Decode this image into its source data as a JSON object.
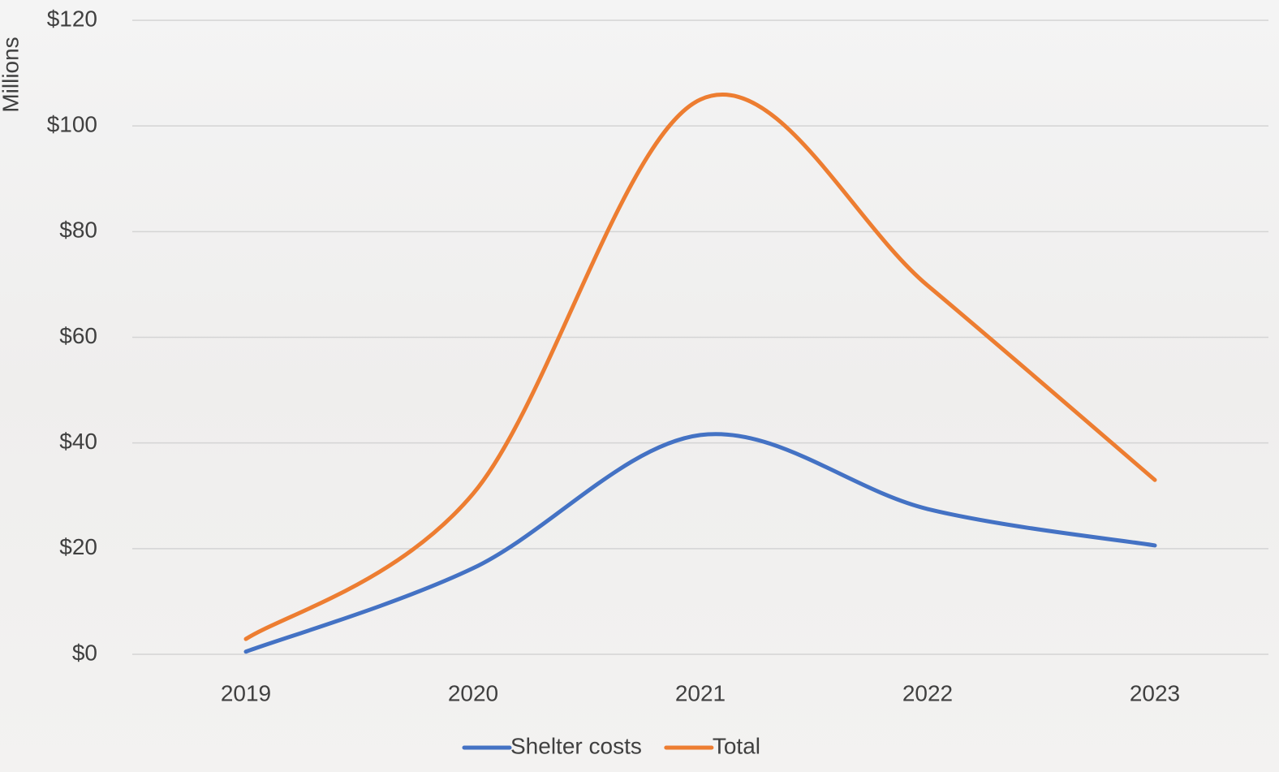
{
  "chart_data": {
    "type": "line",
    "y_label": "Millions",
    "categories": [
      "2019",
      "2020",
      "2021",
      "2022",
      "2023"
    ],
    "series": [
      {
        "name": "Shelter costs",
        "color": "#4472c4",
        "values": [
          0.5,
          16.3,
          41.5,
          27.5,
          20.6
        ]
      },
      {
        "name": "Total",
        "color": "#ed7d31",
        "values": [
          2.9,
          30.4,
          105,
          69.8,
          33.0
        ]
      }
    ],
    "ylim": [
      0,
      120
    ],
    "yticks": [
      {
        "value": 0,
        "label": "$0"
      },
      {
        "value": 20,
        "label": "$20"
      },
      {
        "value": 40,
        "label": "$40"
      },
      {
        "value": 60,
        "label": "$60"
      },
      {
        "value": 80,
        "label": "$80"
      },
      {
        "value": 100,
        "label": "$100"
      },
      {
        "value": 120,
        "label": "$120"
      }
    ],
    "grid": true,
    "smooth": true,
    "legend": "bottom"
  }
}
